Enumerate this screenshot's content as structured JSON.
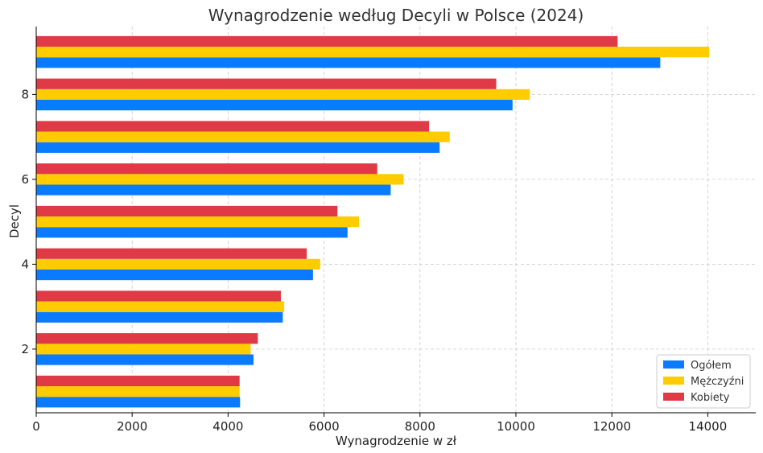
{
  "chart_data": {
    "type": "bar",
    "orientation": "horizontal",
    "title": "Wynagrodzenie według Decyli w Polsce (2024)",
    "xlabel": "Wynagrodzenie w zł",
    "ylabel": "Decyl",
    "xlim": [
      0,
      15000
    ],
    "ylim": [
      0.5,
      9.6
    ],
    "xticks": [
      0,
      2000,
      4000,
      6000,
      8000,
      10000,
      12000,
      14000
    ],
    "yticks": [
      2,
      4,
      6,
      8
    ],
    "grid": true,
    "legend_position": "bottom-right",
    "categories": [
      1,
      2,
      3,
      4,
      5,
      6,
      7,
      8,
      9
    ],
    "series": [
      {
        "name": "Ogółem",
        "color": "#0a7bff",
        "values": [
          4250,
          4530,
          5140,
          5770,
          6490,
          7390,
          8410,
          9930,
          13010
        ]
      },
      {
        "name": "Mężczyźni",
        "color": "#ffcc00",
        "values": [
          4240,
          4470,
          5170,
          5920,
          6730,
          7660,
          8620,
          10290,
          14030
        ]
      },
      {
        "name": "Kobiety",
        "color": "#e03a47",
        "values": [
          4240,
          4620,
          5100,
          5640,
          6280,
          7110,
          8190,
          9590,
          12120
        ]
      }
    ]
  }
}
